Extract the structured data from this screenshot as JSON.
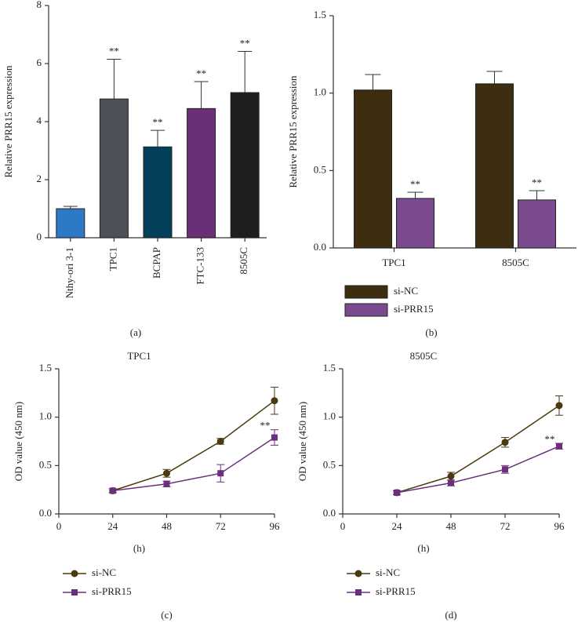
{
  "chart_data": [
    {
      "type": "bar",
      "panel_label": "(a)",
      "ylabel": "Relative PRR15 expression",
      "categories": [
        "Nthy-ori 3-1",
        "TPC1",
        "BCPAP",
        "FTC-133",
        "8505C"
      ],
      "values": [
        1.0,
        4.78,
        3.13,
        4.45,
        5.0
      ],
      "errors": [
        0.08,
        1.37,
        0.57,
        0.93,
        1.42
      ],
      "significance": [
        null,
        "**",
        "**",
        "**",
        "**"
      ],
      "colors": [
        "#2e78c8",
        "#4d5058",
        "#033e5a",
        "#6b2f78",
        "#1e1e1e"
      ],
      "ylim": [
        0,
        8
      ],
      "yticks": [
        0,
        2,
        4,
        6,
        8
      ]
    },
    {
      "type": "grouped_bar",
      "panel_label": "(b)",
      "ylabel": "Relative PRR15 expression",
      "categories": [
        "TPC1",
        "8505C"
      ],
      "series": [
        {
          "name": "si-NC",
          "color": "#3c2e0e",
          "values": [
            1.02,
            1.06
          ],
          "errors": [
            0.1,
            0.08
          ],
          "significance": [
            null,
            null
          ]
        },
        {
          "name": "si-PRR15",
          "color": "#7b4a8f",
          "values": [
            0.32,
            0.31
          ],
          "errors": [
            0.04,
            0.06
          ],
          "significance": [
            "**",
            "**"
          ]
        }
      ],
      "ylim": [
        0,
        1.5
      ],
      "yticks": [
        {
          "value": 0,
          "label": "0.0"
        },
        0.5,
        {
          "value": 1,
          "label": "1.0"
        },
        1.5
      ]
    },
    {
      "type": "line",
      "panel_label": "(c)",
      "title": "TPC1",
      "xlabel": "(h)",
      "ylabel": "OD value (450 nm)",
      "x": [
        24,
        48,
        72,
        96
      ],
      "series": [
        {
          "name": "si-NC",
          "color": "#4a3a10",
          "marker": "circle",
          "values": [
            0.24,
            0.42,
            0.75,
            1.17
          ],
          "errors": [
            0.02,
            0.04,
            0.03,
            0.14
          ],
          "significance": [
            null,
            null,
            null,
            null
          ]
        },
        {
          "name": "si-PRR15",
          "color": "#6b2f7e",
          "marker": "square",
          "values": [
            0.24,
            0.31,
            0.42,
            0.79
          ],
          "errors": [
            0.02,
            0.03,
            0.09,
            0.08
          ],
          "significance": [
            null,
            null,
            null,
            "**"
          ]
        }
      ],
      "xlim": [
        0,
        96
      ],
      "xticks": [
        0,
        24,
        48,
        72,
        96
      ],
      "ylim": [
        0,
        1.5
      ],
      "yticks": [
        {
          "value": 0,
          "label": "0.0"
        },
        0.5,
        {
          "value": 1,
          "label": "1.0"
        },
        1.5
      ]
    },
    {
      "type": "line",
      "panel_label": "(d)",
      "title": "8505C",
      "xlabel": "(h)",
      "ylabel": "OD value (450 nm)",
      "x": [
        24,
        48,
        72,
        96
      ],
      "series": [
        {
          "name": "si-NC",
          "color": "#4a3a10",
          "marker": "circle",
          "values": [
            0.22,
            0.39,
            0.74,
            1.12
          ],
          "errors": [
            0.02,
            0.04,
            0.05,
            0.1
          ],
          "significance": [
            null,
            null,
            null,
            null
          ]
        },
        {
          "name": "si-PRR15",
          "color": "#6b2f7e",
          "marker": "square",
          "values": [
            0.22,
            0.32,
            0.46,
            0.7
          ],
          "errors": [
            0.02,
            0.03,
            0.04,
            0.03
          ],
          "significance": [
            null,
            null,
            null,
            "**"
          ]
        }
      ],
      "xlim": [
        0,
        96
      ],
      "xticks": [
        0,
        24,
        48,
        72,
        96
      ],
      "ylim": [
        0,
        1.5
      ],
      "yticks": [
        {
          "value": 0,
          "label": "0.0"
        },
        0.5,
        {
          "value": 1,
          "label": "1.0"
        },
        1.5
      ]
    }
  ]
}
